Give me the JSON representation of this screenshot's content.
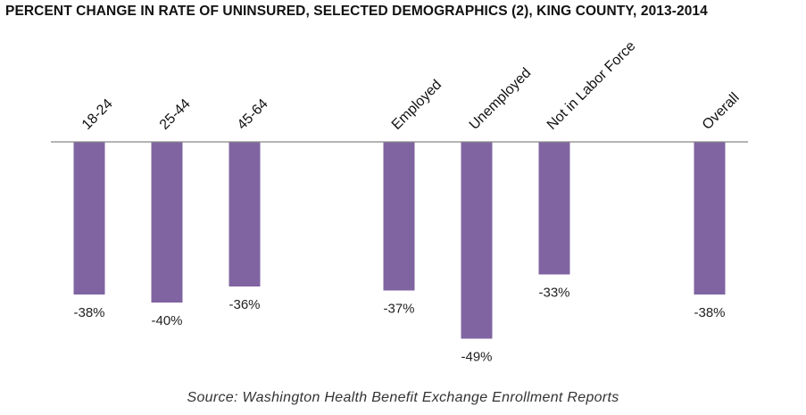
{
  "chart_data": {
    "type": "bar",
    "title": "PERCENT CHANGE IN RATE OF UNINSURED, SELECTED DEMOGRAPHICS (2), KING COUNTY, 2013-2014",
    "categories": [
      "18-24",
      "25-44",
      "45-64",
      "Employed",
      "Unemployed",
      "Not in Labor Force",
      "Overall"
    ],
    "values": [
      -38,
      -40,
      -36,
      -37,
      -49,
      -33,
      -38
    ],
    "value_labels": [
      "-38%",
      "-40%",
      "-36%",
      "-37%",
      "-49%",
      "-33%",
      "-38%"
    ],
    "ylim": [
      -49,
      0
    ],
    "grid": false,
    "legend": "none",
    "bar_color": "#8064A2",
    "baseline_color": "#868686",
    "source": "Source: Washington Health Benefit Exchange Enrollment Reports"
  }
}
